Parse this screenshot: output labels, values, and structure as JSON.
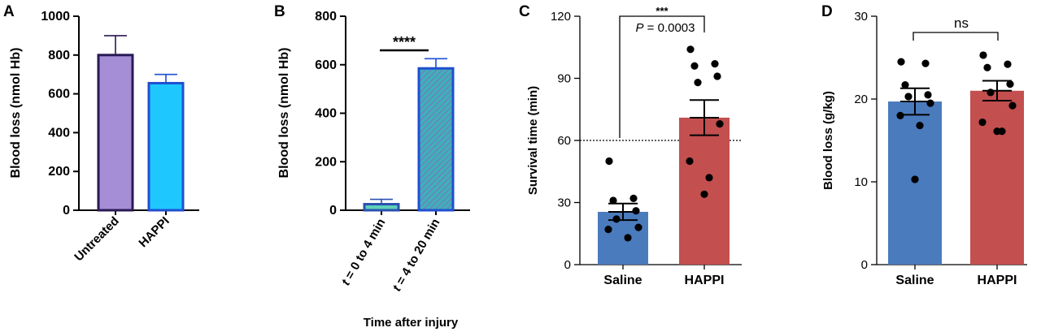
{
  "chart_data": [
    {
      "panel": "A",
      "type": "bar",
      "categories": [
        "Untreated",
        "HAPPI"
      ],
      "values": [
        800,
        655
      ],
      "error_upper": [
        900,
        700
      ],
      "ylabel": "Blood loss (nmol Hb)",
      "xlabel": "",
      "ylim": [
        0,
        1000
      ],
      "yticks": [
        0,
        200,
        400,
        600,
        800,
        1000
      ],
      "colors": [
        "#a58ed6",
        "#1ec8ff"
      ],
      "edge_colors": [
        "#2a1a55",
        "#1f4fd1"
      ]
    },
    {
      "panel": "B",
      "type": "bar",
      "categories": [
        "t = 0 to 4 min",
        "t = 4 to 20 min"
      ],
      "category_parts": [
        {
          "var": "t",
          "rest": " = 0 to 4 min"
        },
        {
          "var": "t",
          "rest": " = 4 to 20 min"
        }
      ],
      "values": [
        25,
        585
      ],
      "error_upper": [
        45,
        625
      ],
      "ylabel": "Blood loss (nmol Hb)",
      "xlabel": "Time after injury",
      "ylim": [
        0,
        800
      ],
      "yticks": [
        0,
        200,
        400,
        600,
        800
      ],
      "annotation": "****",
      "colors": [
        "#5fd0b8",
        "#3aa7c8"
      ],
      "edge_colors": [
        "#2a50b0",
        "#1f4fd1"
      ]
    },
    {
      "panel": "C",
      "type": "bar",
      "categories": [
        "Saline",
        "HAPPI"
      ],
      "values": [
        25.5,
        71
      ],
      "sem": [
        4,
        8.5
      ],
      "points": [
        [
          50,
          32,
          31,
          26,
          22,
          18,
          17,
          13
        ],
        [
          104,
          97,
          96,
          91,
          88,
          68,
          50,
          42,
          34
        ]
      ],
      "ylabel": "Survival time (min)",
      "xlabel": "",
      "ylim": [
        0,
        120
      ],
      "yticks": [
        0,
        30,
        60,
        90,
        120
      ],
      "reference_line": 60,
      "significance": "***",
      "p_label": "P",
      "p_value": " = 0.0003",
      "colors": [
        "#4a7bbd",
        "#c34f4f"
      ]
    },
    {
      "panel": "D",
      "type": "bar",
      "categories": [
        "Saline",
        "HAPPI"
      ],
      "values": [
        19.7,
        21
      ],
      "sem": [
        1.6,
        1.2
      ],
      "points": [
        [
          24.5,
          24.3,
          21.7,
          20.5,
          20.3,
          19.5,
          18,
          16.8,
          10.3
        ],
        [
          25.3,
          24.2,
          23.8,
          21.8,
          20.8,
          19.2,
          17.2,
          16.1,
          16.1
        ]
      ],
      "ylabel": "Blood loss (g/kg)",
      "xlabel": "",
      "ylim": [
        0,
        30
      ],
      "yticks": [
        0,
        10,
        20,
        30
      ],
      "significance": "ns",
      "colors": [
        "#4a7bbd",
        "#c34f4f"
      ]
    }
  ],
  "panel_labels": [
    "A",
    "B",
    "C",
    "D"
  ]
}
